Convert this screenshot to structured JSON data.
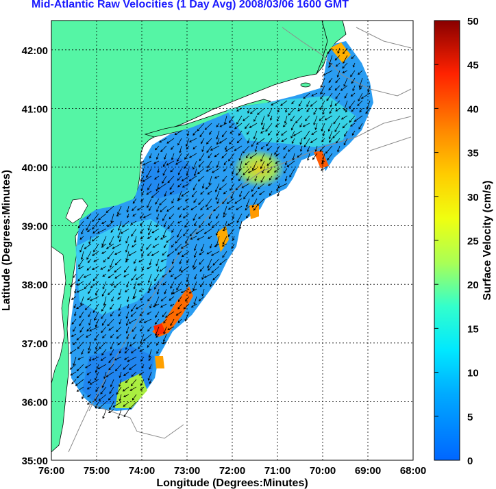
{
  "title": "Mid-Atlantic Raw Velocities (1 Day Avg) 2008/03/06 1600 GMT",
  "xaxis": {
    "label": "Longitude (Degrees:Minutes)",
    "ticks": [
      "76:00",
      "75:00",
      "74:00",
      "73:00",
      "72:00",
      "71:00",
      "70:00",
      "69:00",
      "68:00"
    ]
  },
  "yaxis": {
    "label": "Latitude (Degrees:Minutes)",
    "ticks": [
      "35:00",
      "36:00",
      "37:00",
      "38:00",
      "39:00",
      "40:00",
      "41:00",
      "42:00"
    ]
  },
  "colorbar": {
    "label": "Surface Velocity (cm/s)",
    "ticks": [
      "0",
      "5",
      "10",
      "15",
      "20",
      "25",
      "30",
      "35",
      "40",
      "45",
      "50"
    ],
    "min": 0,
    "max": 50
  },
  "colors": {
    "land": "#55f5a5",
    "ocean_background": "#ffffff",
    "title": "#1a1aff",
    "grid": "#000000",
    "bathymetry": "#8c8c8c"
  }
}
